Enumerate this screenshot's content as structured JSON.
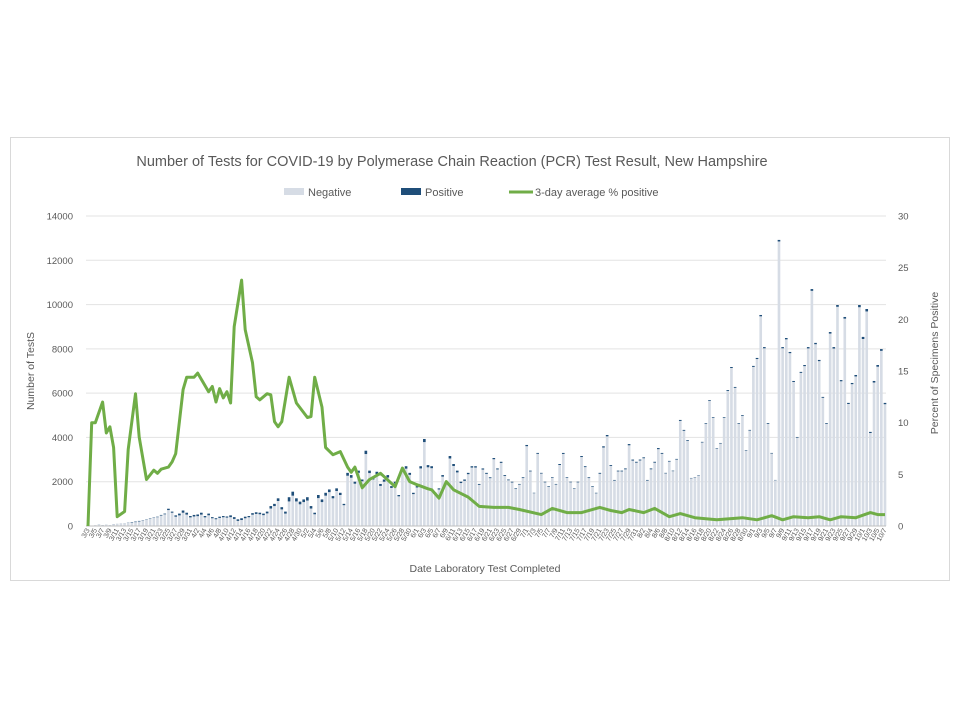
{
  "chart_data": {
    "type": "bar+line",
    "title": "Number of Tests for COVID-19 by Polymerase Chain Reaction (PCR) Test Result, New Hampshire",
    "xlabel": "Date Laboratory Test Completed",
    "ylabel": "Number of TestS",
    "y2label": "Percent of Specimens Positive",
    "ylim": [
      0,
      14000
    ],
    "y2lim": [
      0,
      30
    ],
    "yticks": [
      "0",
      "2000",
      "4000",
      "6000",
      "8000",
      "10000",
      "12000",
      "14000"
    ],
    "y2ticks": [
      "0",
      "5",
      "10",
      "15",
      "20",
      "25",
      "30"
    ],
    "grid": true,
    "legend_position": "top",
    "legend": [
      "Negative",
      "Positive",
      "3-day average % positive"
    ],
    "colors": {
      "negative": "#d6dce5",
      "positive": "#1f4e79",
      "line": "#70ad47"
    },
    "categories": [
      "3/3",
      "3/4",
      "3/5",
      "3/6",
      "3/7",
      "3/8",
      "3/9",
      "3/10",
      "3/11",
      "3/12",
      "3/13",
      "3/14",
      "3/15",
      "3/16",
      "3/17",
      "3/18",
      "3/19",
      "3/20",
      "3/21",
      "3/22",
      "3/23",
      "3/24",
      "3/25",
      "3/26",
      "3/27",
      "3/28",
      "3/29",
      "3/30",
      "3/31",
      "4/1",
      "4/2",
      "4/3",
      "4/4",
      "4/5",
      "4/6",
      "4/7",
      "4/8",
      "4/9",
      "4/10",
      "4/11",
      "4/12",
      "4/13",
      "4/14",
      "4/15",
      "4/16",
      "4/17",
      "4/18",
      "4/19",
      "4/20",
      "4/21",
      "4/22",
      "4/23",
      "4/24",
      "4/25",
      "4/26",
      "4/27",
      "4/28",
      "4/29",
      "4/30",
      "5/1",
      "5/2",
      "5/3",
      "5/4",
      "5/5",
      "5/6",
      "5/7",
      "5/8",
      "5/9",
      "5/10",
      "5/11",
      "5/12",
      "5/13",
      "5/14",
      "5/15",
      "5/16",
      "5/17",
      "5/18",
      "5/19",
      "5/20",
      "5/21",
      "5/22",
      "5/23",
      "5/24",
      "5/25",
      "5/26",
      "5/27",
      "5/28",
      "5/29",
      "5/30",
      "5/31",
      "6/1",
      "6/2",
      "6/3",
      "6/4",
      "6/5",
      "6/6",
      "6/7",
      "6/8",
      "6/9",
      "6/10",
      "6/11",
      "6/12",
      "6/13",
      "6/14",
      "6/15",
      "6/16",
      "6/17",
      "6/18",
      "6/19",
      "6/20",
      "6/21",
      "6/22",
      "6/23",
      "6/24",
      "6/25",
      "6/26",
      "6/27",
      "6/28",
      "6/29",
      "6/30",
      "7/1",
      "7/2",
      "7/3",
      "7/4",
      "7/5",
      "7/6",
      "7/7",
      "7/8",
      "7/9",
      "7/10",
      "7/11",
      "7/12",
      "7/13",
      "7/14",
      "7/15",
      "7/16",
      "7/17",
      "7/18",
      "7/19",
      "7/20",
      "7/21",
      "7/22",
      "7/23",
      "7/24",
      "7/25",
      "7/26",
      "7/27",
      "7/28",
      "7/29",
      "7/30",
      "7/31",
      "8/1",
      "8/2",
      "8/3",
      "8/4",
      "8/5",
      "8/6",
      "8/7",
      "8/8",
      "8/9",
      "8/10",
      "8/11",
      "8/12",
      "8/13",
      "8/14",
      "8/15",
      "8/16",
      "8/17",
      "8/18",
      "8/19",
      "8/20",
      "8/21",
      "8/22",
      "8/23",
      "8/24",
      "8/25",
      "8/26",
      "8/27",
      "8/28",
      "8/29",
      "8/30",
      "8/31",
      "9/1",
      "9/2",
      "9/3",
      "9/4",
      "9/5",
      "9/6",
      "9/7",
      "9/8",
      "9/9",
      "9/10",
      "9/11",
      "9/12",
      "9/13",
      "9/14",
      "9/15",
      "9/16",
      "9/17",
      "9/18",
      "9/19",
      "9/20",
      "9/21",
      "9/22",
      "9/23",
      "9/24",
      "9/25",
      "9/26",
      "9/27",
      "9/28",
      "9/29",
      "9/30",
      "10/1",
      "10/2",
      "10/3",
      "10/4",
      "10/5",
      "10/6",
      "10/7"
    ],
    "series": [
      {
        "name": "Negative",
        "type": "bar",
        "values": [
          0,
          9,
          27,
          53,
          36,
          45,
          37,
          74,
          98,
          118,
          128,
          140,
          160,
          175,
          205,
          245,
          285,
          332,
          362,
          398,
          472,
          528,
          720,
          600,
          420,
          480,
          600,
          515,
          390,
          430,
          445,
          515,
          390,
          485,
          350,
          305,
          365,
          395,
          380,
          400,
          320,
          230,
          270,
          350,
          395,
          510,
          545,
          530,
          490,
          570,
          790,
          900,
          1130,
          750,
          560,
          1110,
          1370,
          1110,
          980,
          1080,
          1150,
          790,
          530,
          1260,
          1080,
          1370,
          1530,
          1250,
          1580,
          1400,
          940,
          2270,
          2180,
          1910,
          2400,
          2020,
          3250,
          2390,
          2100,
          2340,
          1810,
          2000,
          2190,
          1720,
          1920,
          1340,
          2490,
          2590,
          2310,
          1440,
          1740,
          2600,
          3790,
          2650,
          2610,
          1450,
          1650,
          2230,
          1930,
          3050,
          2710,
          2420,
          1940,
          2040,
          2340,
          2640,
          2640,
          1860,
          2550,
          2355,
          2160,
          3015,
          2555,
          2850,
          2260,
          2065,
          1965,
          1670,
          1870,
          2165,
          3605,
          2465,
          1480,
          3260,
          2370,
          1970,
          1770,
          2170,
          1872,
          2755,
          3255,
          2170,
          1972,
          1675,
          1970,
          3115,
          2660,
          2165,
          1770,
          1475,
          2360,
          3545,
          4050,
          2710,
          2050,
          2465,
          2465,
          2560,
          3645,
          2955,
          2860,
          2960,
          3060,
          2050,
          2560,
          2860,
          3470,
          3260,
          2375,
          2910,
          2475,
          3000,
          4745,
          4300,
          3845,
          2152,
          2182,
          2282,
          3772,
          4620,
          5655,
          4890,
          3498,
          3725,
          4890,
          6100,
          7135,
          6240,
          4620,
          4975,
          3408,
          4310,
          7185,
          7540,
          9470,
          8025,
          4615,
          3275,
          2065,
          12850,
          8025,
          8430,
          7805,
          6505,
          3990,
          6915,
          7220,
          8020,
          10620,
          8210,
          7445,
          5790,
          4615,
          8690,
          8015,
          9900,
          6535,
          9365,
          5510,
          6405,
          6755,
          9880,
          8445,
          9690,
          4200,
          6480,
          7195,
          7910,
          5500
        ]
      },
      {
        "name": "Positive",
        "type": "bar",
        "values": [
          0,
          1,
          3,
          7,
          4,
          5,
          3,
          6,
          2,
          2,
          2,
          10,
          20,
          25,
          25,
          15,
          15,
          18,
          18,
          22,
          28,
          32,
          60,
          50,
          60,
          80,
          100,
          85,
          60,
          70,
          75,
          85,
          60,
          75,
          50,
          45,
          55,
          55,
          50,
          80,
          80,
          70,
          80,
          70,
          55,
          70,
          75,
          70,
          70,
          80,
          110,
          100,
          120,
          100,
          90,
          190,
          180,
          140,
          120,
          120,
          150,
          110,
          70,
          140,
          120,
          130,
          120,
          100,
          120,
          100,
          60,
          130,
          120,
          90,
          100,
          80,
          150,
          110,
          100,
          110,
          90,
          100,
          110,
          80,
          80,
          60,
          110,
          110,
          90,
          60,
          60,
          100,
          140,
          100,
          90,
          50,
          50,
          70,
          70,
          110,
          90,
          80,
          60,
          60,
          60,
          60,
          60,
          40,
          50,
          45,
          40,
          55,
          45,
          50,
          40,
          35,
          35,
          30,
          30,
          35,
          55,
          35,
          20,
          40,
          30,
          30,
          30,
          30,
          28,
          45,
          45,
          30,
          28,
          25,
          30,
          45,
          40,
          35,
          30,
          25,
          40,
          55,
          60,
          40,
          30,
          35,
          35,
          40,
          55,
          45,
          40,
          40,
          40,
          30,
          40,
          40,
          50,
          40,
          25,
          30,
          25,
          30,
          45,
          40,
          35,
          18,
          18,
          18,
          28,
          30,
          35,
          30,
          22,
          25,
          30,
          40,
          45,
          40,
          30,
          35,
          22,
          30,
          45,
          50,
          60,
          55,
          35,
          25,
          15,
          70,
          55,
          60,
          55,
          45,
          30,
          45,
          50,
          60,
          80,
          60,
          55,
          40,
          35,
          70,
          65,
          80,
          55,
          75,
          50,
          55,
          65,
          100,
          95,
          110,
          50,
          70,
          75,
          80,
          60
        ]
      },
      {
        "name": "3-day average % positive",
        "type": "line",
        "axis": "right",
        "points": [
          [
            "3/3",
            0
          ],
          [
            "3/4",
            10
          ],
          [
            "3/5",
            10
          ],
          [
            "3/7",
            12
          ],
          [
            "3/8",
            9
          ],
          [
            "3/9",
            9.6
          ],
          [
            "3/10",
            7.6
          ],
          [
            "3/11",
            0.9
          ],
          [
            "3/13",
            1.4
          ],
          [
            "3/14",
            7.4
          ],
          [
            "3/16",
            12.8
          ],
          [
            "3/17",
            8.6
          ],
          [
            "3/19",
            4.5
          ],
          [
            "3/21",
            5.4
          ],
          [
            "3/22",
            5.1
          ],
          [
            "3/23",
            5.5
          ],
          [
            "3/25",
            5.7
          ],
          [
            "3/26",
            6.2
          ],
          [
            "3/27",
            7.0
          ],
          [
            "3/29",
            13.2
          ],
          [
            "3/30",
            14.4
          ],
          [
            "4/1",
            14.4
          ],
          [
            "4/2",
            14.8
          ],
          [
            "4/5",
            13
          ],
          [
            "4/6",
            13.5
          ],
          [
            "4/7",
            12
          ],
          [
            "4/8",
            13.3
          ],
          [
            "4/9",
            12.4
          ],
          [
            "4/10",
            13
          ],
          [
            "4/11",
            11.9
          ],
          [
            "4/12",
            19.3
          ],
          [
            "4/14",
            23.8
          ],
          [
            "4/15",
            19
          ],
          [
            "4/17",
            15.8
          ],
          [
            "4/18",
            12.5
          ],
          [
            "4/19",
            12.2
          ],
          [
            "4/21",
            12.8
          ],
          [
            "4/22",
            12.7
          ],
          [
            "4/23",
            10.1
          ],
          [
            "4/24",
            9.6
          ],
          [
            "4/25",
            10.1
          ],
          [
            "4/27",
            14.4
          ],
          [
            "4/29",
            11.9
          ],
          [
            "5/2",
            10.5
          ],
          [
            "5/3",
            10.6
          ],
          [
            "5/4",
            14.4
          ],
          [
            "5/6",
            11.5
          ],
          [
            "5/7",
            7.6
          ],
          [
            "5/9",
            6.9
          ],
          [
            "5/11",
            7.2
          ],
          [
            "5/13",
            5.7
          ],
          [
            "5/14",
            5.2
          ],
          [
            "5/15",
            5.7
          ],
          [
            "5/17",
            3.7
          ],
          [
            "5/19",
            4.5
          ],
          [
            "5/22",
            5.1
          ],
          [
            "5/26",
            3.8
          ],
          [
            "5/28",
            5.6
          ],
          [
            "5/30",
            4.3
          ],
          [
            "6/1",
            4.0
          ],
          [
            "6/4",
            3.6
          ],
          [
            "6/5",
            3.5
          ],
          [
            "6/7",
            2.7
          ],
          [
            "6/9",
            4.3
          ],
          [
            "6/11",
            3.5
          ],
          [
            "6/15",
            2.8
          ],
          [
            "6/18",
            1.9
          ],
          [
            "6/22",
            1.8
          ],
          [
            "6/26",
            1.8
          ],
          [
            "6/29",
            1.6
          ],
          [
            "7/5",
            1.1
          ],
          [
            "7/8",
            1.7
          ],
          [
            "7/12",
            1.3
          ],
          [
            "7/16",
            1.3
          ],
          [
            "7/21",
            1.8
          ],
          [
            "7/24",
            1.5
          ],
          [
            "7/27",
            1.3
          ],
          [
            "7/29",
            1.6
          ],
          [
            "8/2",
            1.3
          ],
          [
            "8/5",
            1.7
          ],
          [
            "8/9",
            0.9
          ],
          [
            "8/12",
            1.2
          ],
          [
            "8/16",
            0.8
          ],
          [
            "8/22",
            0.6
          ],
          [
            "8/29",
            0.8
          ],
          [
            "9/2",
            0.6
          ],
          [
            "9/6",
            1.0
          ],
          [
            "9/9",
            0.6
          ],
          [
            "9/12",
            0.9
          ],
          [
            "9/16",
            0.8
          ],
          [
            "9/19",
            0.9
          ],
          [
            "9/22",
            0.6
          ],
          [
            "9/25",
            0.9
          ],
          [
            "9/29",
            0.8
          ],
          [
            "10/3",
            1.3
          ],
          [
            "10/5",
            1.1
          ],
          [
            "10/7",
            1.1
          ]
        ]
      }
    ]
  }
}
